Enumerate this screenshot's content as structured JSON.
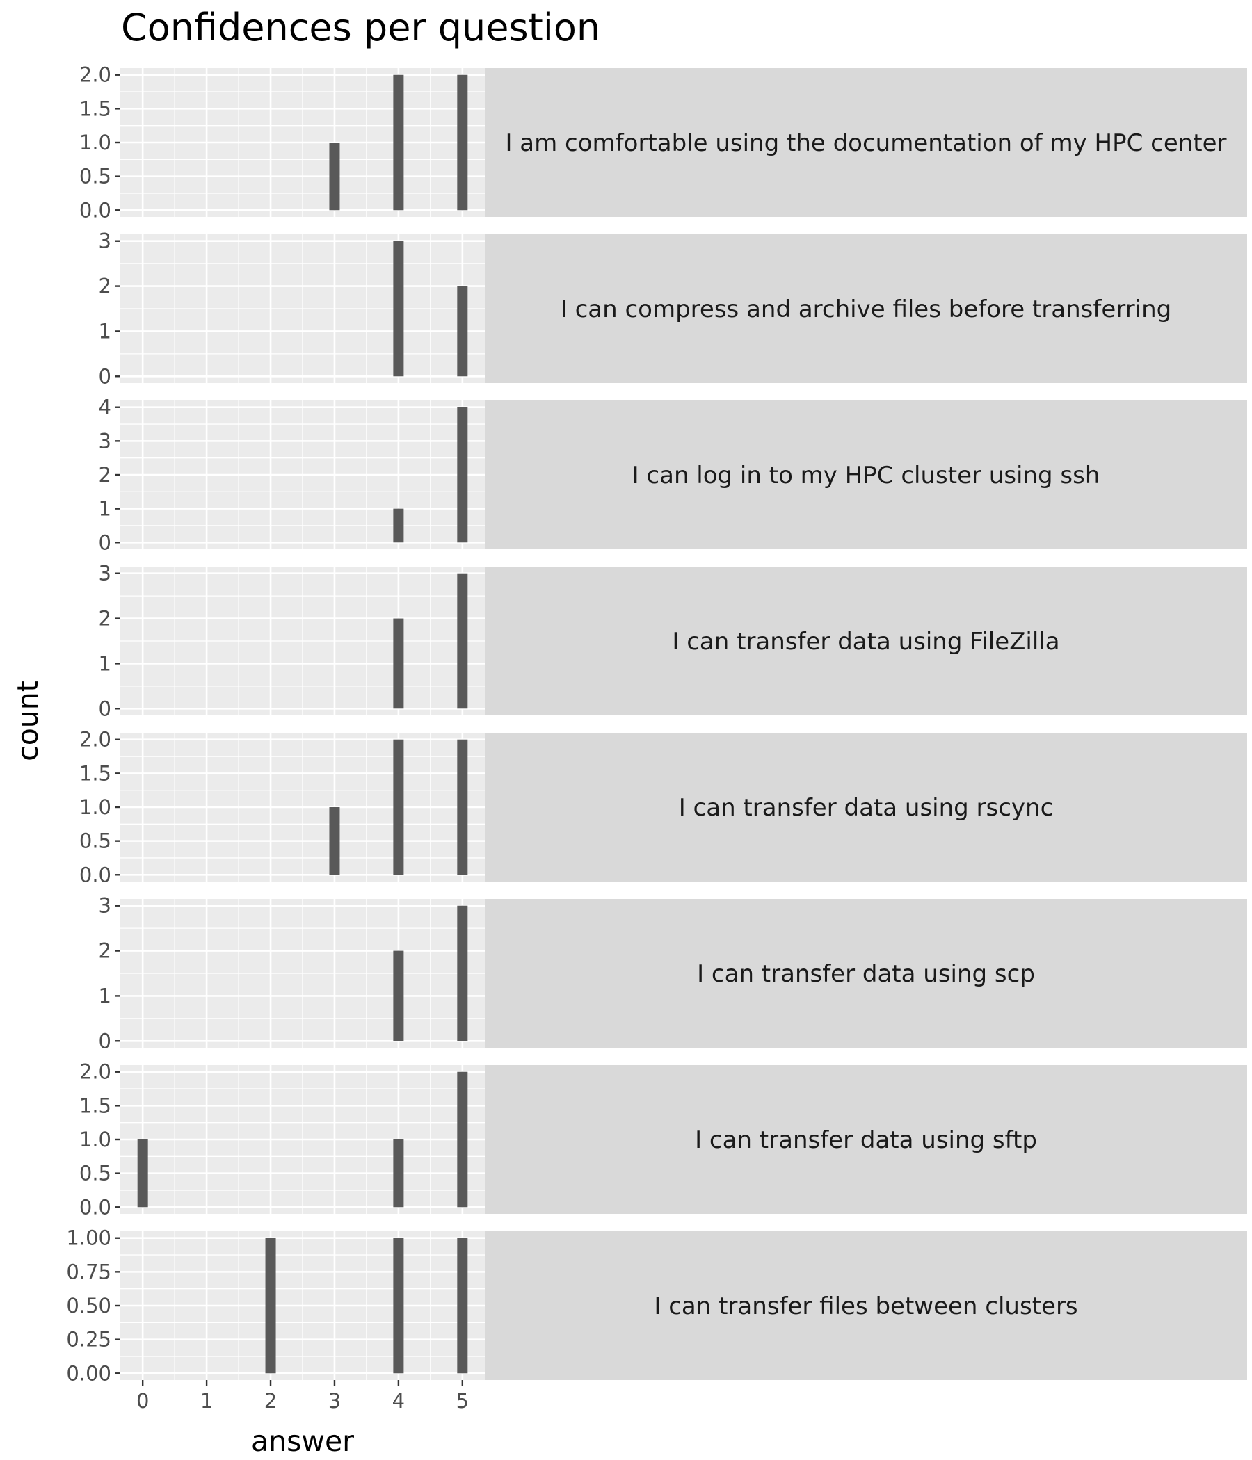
{
  "chart_data": {
    "type": "bar",
    "title": "Confidences per question",
    "xlabel": "answer",
    "ylabel": "count",
    "x_ticks": [
      "0",
      "1",
      "2",
      "3",
      "4",
      "5"
    ],
    "xlim": [
      -0.35,
      5.35
    ],
    "grid": true,
    "facet_layout": "rows, labels on right",
    "panels": [
      {
        "label": "I am comfortable using the documentation of my HPC center",
        "bars": [
          {
            "x": 3,
            "value": 1
          },
          {
            "x": 4,
            "value": 2
          },
          {
            "x": 5,
            "value": 2
          }
        ],
        "ylim": [
          -0.1,
          2.1
        ],
        "y_ticks": [
          "0.0",
          "0.5",
          "1.0",
          "1.5",
          "2.0"
        ]
      },
      {
        "label": "I can compress and archive files before transferring",
        "bars": [
          {
            "x": 4,
            "value": 3
          },
          {
            "x": 5,
            "value": 2
          }
        ],
        "ylim": [
          -0.15,
          3.15
        ],
        "y_ticks": [
          "0",
          "1",
          "2",
          "3"
        ]
      },
      {
        "label": "I can log in to my HPC cluster using ssh",
        "bars": [
          {
            "x": 4,
            "value": 1
          },
          {
            "x": 5,
            "value": 4
          }
        ],
        "ylim": [
          -0.2,
          4.2
        ],
        "y_ticks": [
          "0",
          "1",
          "2",
          "3",
          "4"
        ]
      },
      {
        "label": "I can transfer data using FileZilla",
        "bars": [
          {
            "x": 4,
            "value": 2
          },
          {
            "x": 5,
            "value": 3
          }
        ],
        "ylim": [
          -0.15,
          3.15
        ],
        "y_ticks": [
          "0",
          "1",
          "2",
          "3"
        ]
      },
      {
        "label": "I can transfer data using rscync",
        "bars": [
          {
            "x": 3,
            "value": 1
          },
          {
            "x": 4,
            "value": 2
          },
          {
            "x": 5,
            "value": 2
          }
        ],
        "ylim": [
          -0.1,
          2.1
        ],
        "y_ticks": [
          "0.0",
          "0.5",
          "1.0",
          "1.5",
          "2.0"
        ]
      },
      {
        "label": "I can transfer data using scp",
        "bars": [
          {
            "x": 4,
            "value": 2
          },
          {
            "x": 5,
            "value": 3
          }
        ],
        "ylim": [
          -0.15,
          3.15
        ],
        "y_ticks": [
          "0",
          "1",
          "2",
          "3"
        ]
      },
      {
        "label": "I can transfer data using sftp",
        "bars": [
          {
            "x": 0,
            "value": 1
          },
          {
            "x": 4,
            "value": 1
          },
          {
            "x": 5,
            "value": 2
          }
        ],
        "ylim": [
          -0.1,
          2.1
        ],
        "y_ticks": [
          "0.0",
          "0.5",
          "1.0",
          "1.5",
          "2.0"
        ]
      },
      {
        "label": "I can transfer files between clusters",
        "bars": [
          {
            "x": 2,
            "value": 1
          },
          {
            "x": 4,
            "value": 1
          },
          {
            "x": 5,
            "value": 1
          }
        ],
        "ylim": [
          -0.05,
          1.05
        ],
        "y_ticks": [
          "0.00",
          "0.25",
          "0.50",
          "0.75",
          "1.00"
        ]
      }
    ],
    "colors": {
      "bar": "#595959",
      "panel_bg": "#ebebeb",
      "strip_bg": "#d9d9d9",
      "grid": "#ffffff"
    }
  }
}
